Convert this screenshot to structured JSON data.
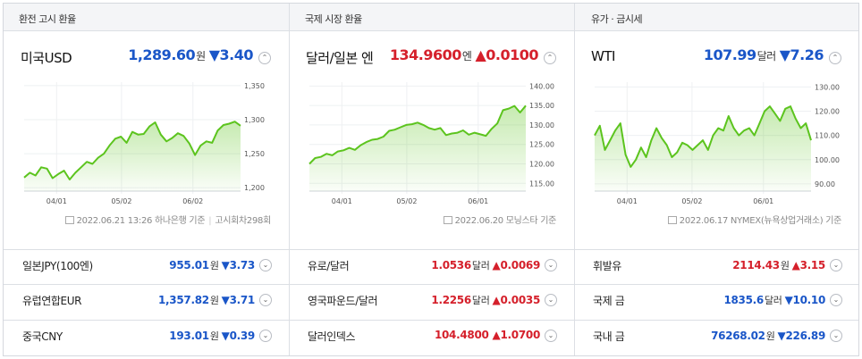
{
  "colors": {
    "up": "#d5202b",
    "down": "#1a56c8",
    "line": "#5cc41e"
  },
  "headers": [
    "환전 고시 환율",
    "국제 시장 환율",
    "유가 · 금시세"
  ],
  "panels": [
    {
      "title": "미국USD",
      "value": "1,289.60",
      "unit": "원",
      "dir": "down",
      "arrow": "▼",
      "change": "3.40",
      "note": "2022.06.21 13:26 하나은행 기준",
      "note2": "고시회차298회",
      "collapse_icon": "chevron-up-icon"
    },
    {
      "title": "달러/일본 엔",
      "value": "134.9600",
      "unit": "엔",
      "dir": "up",
      "arrow": "▲",
      "change": "0.0100",
      "note": "2022.06.20 모닝스타 기준",
      "collapse_icon": "chevron-up-icon"
    },
    {
      "title": "WTI",
      "value": "107.99",
      "unit": "달러",
      "dir": "down",
      "arrow": "▼",
      "change": "7.26",
      "note": "2022.06.17 NYMEX(뉴욕상업거래소) 기준",
      "collapse_icon": "chevron-up-icon"
    }
  ],
  "chart_data": [
    {
      "type": "area",
      "x_ticks": [
        "04/01",
        "05/02",
        "06/02"
      ],
      "y_ticks": [
        "1,350",
        "1,300",
        "1,250",
        "1,200"
      ],
      "ylim": [
        1195,
        1355
      ],
      "values": [
        1215,
        1222,
        1218,
        1230,
        1228,
        1214,
        1220,
        1225,
        1212,
        1222,
        1230,
        1238,
        1235,
        1244,
        1250,
        1262,
        1272,
        1275,
        1266,
        1282,
        1278,
        1279,
        1290,
        1296,
        1278,
        1268,
        1273,
        1280,
        1276,
        1265,
        1248,
        1262,
        1268,
        1266,
        1284,
        1292,
        1294,
        1297,
        1291
      ]
    },
    {
      "type": "area",
      "x_ticks": [
        "04/01",
        "05/02",
        "06/01"
      ],
      "y_ticks": [
        "140.00",
        "135.00",
        "130.00",
        "125.00",
        "120.00",
        "115.00"
      ],
      "ylim": [
        113,
        141
      ],
      "values": [
        120.0,
        121.5,
        121.8,
        122.6,
        122.2,
        123.2,
        123.5,
        124.1,
        123.6,
        124.8,
        125.6,
        126.2,
        126.4,
        127.0,
        128.5,
        128.8,
        129.4,
        130.0,
        130.2,
        130.6,
        130.0,
        129.2,
        128.8,
        129.2,
        127.4,
        127.8,
        128.0,
        128.6,
        127.5,
        128.0,
        127.6,
        127.2,
        129.0,
        130.4,
        133.8,
        134.2,
        134.9,
        133.2,
        134.96
      ]
    },
    {
      "type": "area",
      "x_ticks": [
        "04/01",
        "05/02",
        "06/01"
      ],
      "y_ticks": [
        "130.00",
        "120.00",
        "110.00",
        "100.00",
        "90.00"
      ],
      "ylim": [
        87,
        132
      ],
      "values": [
        110,
        114,
        104,
        108,
        112,
        115,
        102,
        97,
        100,
        105,
        101,
        108,
        113,
        109,
        106,
        101,
        103,
        107,
        106,
        104,
        106,
        108,
        104,
        110,
        113,
        112,
        118,
        113,
        110,
        112,
        113,
        110,
        115,
        120,
        122,
        119,
        116,
        121,
        122,
        117,
        113,
        115,
        108
      ]
    }
  ],
  "rows": [
    [
      {
        "name": "일본JPY(100엔)",
        "value": "955.01",
        "unit": "원",
        "dir": "down",
        "arrow": "▼",
        "change": "3.73"
      },
      {
        "name": "유럽연합EUR",
        "value": "1,357.82",
        "unit": "원",
        "dir": "down",
        "arrow": "▼",
        "change": "3.71"
      },
      {
        "name": "중국CNY",
        "value": "193.01",
        "unit": "원",
        "dir": "down",
        "arrow": "▼",
        "change": "0.39"
      }
    ],
    [
      {
        "name": "유로/달러",
        "value": "1.0536",
        "unit": "달러",
        "dir": "up",
        "arrow": "▲",
        "change": "0.0069"
      },
      {
        "name": "영국파운드/달러",
        "value": "1.2256",
        "unit": "달러",
        "dir": "up",
        "arrow": "▲",
        "change": "0.0035"
      },
      {
        "name": "달러인덱스",
        "value": "104.4800",
        "unit": "",
        "dir": "up",
        "arrow": "▲",
        "change": "1.0700"
      }
    ],
    [
      {
        "name": "휘발유",
        "value": "2114.43",
        "unit": "원",
        "dir": "up",
        "arrow": "▲",
        "change": "3.15"
      },
      {
        "name": "국제 금",
        "value": "1835.6",
        "unit": "달러",
        "dir": "down",
        "arrow": "▼",
        "change": "10.10"
      },
      {
        "name": "국내 금",
        "value": "76268.02",
        "unit": "원",
        "dir": "down",
        "arrow": "▼",
        "change": "226.89"
      }
    ]
  ]
}
